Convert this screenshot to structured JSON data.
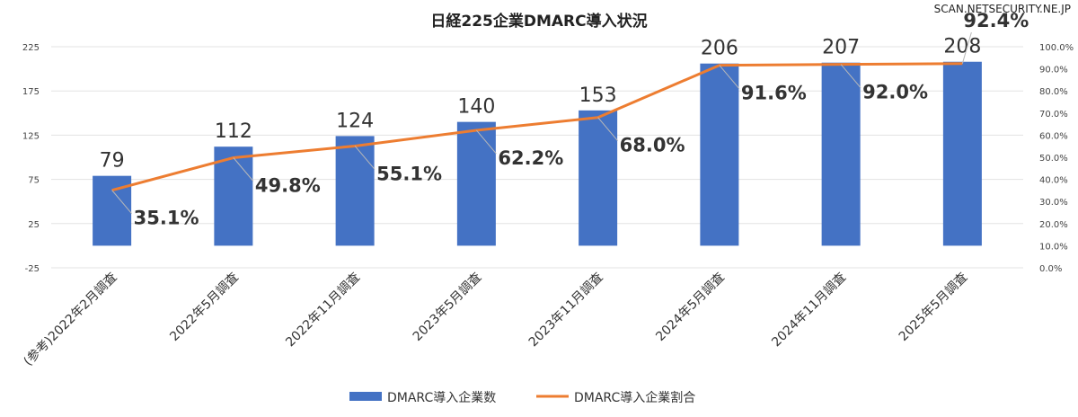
{
  "watermark": "SCAN.NETSECURITY.NE.JP",
  "legend": {
    "bars_label": "DMARC導入企業数",
    "line_label": "DMARC導入企業割合"
  },
  "colors": {
    "bar": "#4472C4",
    "line": "#ED7D31",
    "grid": "#e3e3e3"
  },
  "chart_data": {
    "type": "bar",
    "title": "日経225企業DMARC導入状況",
    "categories": [
      "(参考)2022年2月調査",
      "2022年5月調査",
      "2022年11月調査",
      "2023年5月調査",
      "2023年11月調査",
      "2024年5月調査",
      "2024年11月調査",
      "2025年5月調査"
    ],
    "series": [
      {
        "name": "DMARC導入企業数",
        "type": "bar",
        "axis": "left",
        "values": [
          79,
          112,
          124,
          140,
          153,
          206,
          207,
          208
        ],
        "labels": [
          "79",
          "112",
          "124",
          "140",
          "153",
          "206",
          "207",
          "208"
        ]
      },
      {
        "name": "DMARC導入企業割合",
        "type": "line",
        "axis": "right",
        "values": [
          35.1,
          49.8,
          55.1,
          62.2,
          68.0,
          91.6,
          92.0,
          92.4
        ],
        "labels": [
          "35.1%",
          "49.8%",
          "55.1%",
          "62.2%",
          "68.0%",
          "91.6%",
          "92.0%",
          "92.4%"
        ]
      }
    ],
    "y_left": {
      "min": -25,
      "max": 225,
      "ticks": [
        "-25",
        "25",
        "75",
        "125",
        "175",
        "225"
      ]
    },
    "y_right": {
      "min": 0,
      "max": 100,
      "ticks": [
        "0.0%",
        "10.0%",
        "20.0%",
        "30.0%",
        "40.0%",
        "50.0%",
        "60.0%",
        "70.0%",
        "80.0%",
        "90.0%",
        "100.0%"
      ]
    },
    "grid": true,
    "legend_position": "bottom"
  }
}
